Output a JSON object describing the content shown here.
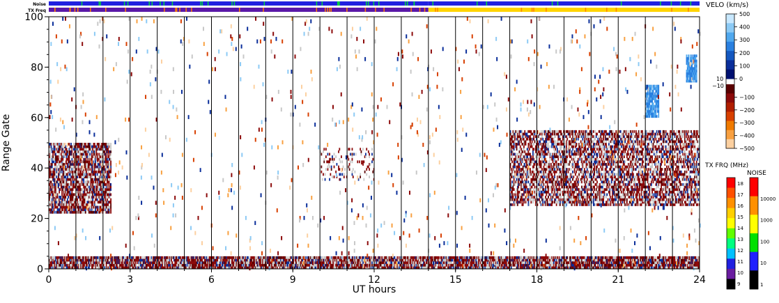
{
  "chart_data": {
    "type": "heatmap",
    "xlabel": "UT hours",
    "ylabel": "Range Gate",
    "xlim": [
      0,
      24
    ],
    "ylim": [
      0,
      100
    ],
    "x_ticks": [
      "0",
      "3",
      "6",
      "9",
      "12",
      "15",
      "18",
      "21",
      "24"
    ],
    "x_tick_values": [
      0,
      3,
      6,
      9,
      12,
      15,
      18,
      21,
      24
    ],
    "y_ticks": [
      "0",
      "20",
      "40",
      "60",
      "80",
      "100"
    ],
    "y_tick_values": [
      0,
      20,
      40,
      60,
      80,
      100
    ],
    "hour_marker_lines": [
      1,
      2,
      3,
      4,
      5,
      6,
      7,
      8,
      9,
      10,
      11,
      12,
      13,
      14,
      15,
      16,
      17,
      18,
      19,
      20,
      21,
      22,
      23,
      24
    ],
    "top_strips": [
      {
        "name": "Noise",
        "label": "Noise",
        "segments": [
          {
            "from": 0,
            "to": 14,
            "color": "#2020e0"
          },
          {
            "from": 14,
            "to": 24,
            "color": "#2020e0"
          }
        ],
        "tick_color": "#00d040"
      },
      {
        "name": "TX Freq",
        "label": "TX Freq",
        "segments": [
          {
            "from": 0,
            "to": 14,
            "color": "#5a18a8"
          },
          {
            "from": 14,
            "to": 24,
            "color": "#ffd400"
          }
        ],
        "tick_color": "#ff8000"
      }
    ],
    "velocity_colorbar": {
      "title": "VELO (km/s)",
      "ticks": [
        "500",
        "400",
        "300",
        "200",
        "100",
        "0",
        "−100",
        "−200",
        "−300",
        "−400",
        "−500"
      ],
      "tick_values": [
        500,
        400,
        300,
        200,
        100,
        0,
        -100,
        -200,
        -300,
        -400,
        -500
      ],
      "gap_labels": [
        "10",
        "−10"
      ],
      "colors": [
        "#c8e8ff",
        "#8ccaf5",
        "#50a8ee",
        "#2a80e0",
        "#1458c0",
        "#0a2e9a",
        "#001070",
        "#5a0000",
        "#8c0a0a",
        "#b01e00",
        "#d84000",
        "#f07a00",
        "#f8a040",
        "#fcd0a0"
      ]
    },
    "txfreq_colorbar": {
      "title": "TX FRQ (MHz)",
      "ticks": [
        "18",
        "17",
        "16",
        "15",
        "14",
        "13",
        "12",
        "11",
        "10",
        "9"
      ],
      "colors": [
        "#ff0000",
        "#ff5000",
        "#ff9000",
        "#ffd000",
        "#ffff00",
        "#60ff00",
        "#00ff80",
        "#00c0ff",
        "#2020e0",
        "#6a1ca0",
        "#000000"
      ]
    },
    "noise_colorbar": {
      "title": "NOISE",
      "ticks": [
        "10000",
        "1000",
        "100",
        "10",
        "1"
      ],
      "colors": [
        "#ff0000",
        "#ff9000",
        "#ffff00",
        "#00e000",
        "#2020ff",
        "#000000"
      ]
    },
    "scatter_bands": [
      {
        "name": "ground scatter near range",
        "t0": 0,
        "t1": 24,
        "g0": 0,
        "g1": 5,
        "density": 0.9
      },
      {
        "name": "morning band",
        "t0": 0,
        "t1": 2.3,
        "g0": 22,
        "g1": 50,
        "density": 0.75
      },
      {
        "name": "evening band",
        "t0": 17,
        "t1": 24,
        "g0": 25,
        "g1": 55,
        "density": 0.6
      },
      {
        "name": "mid-day band",
        "t0": 10,
        "t1": 12,
        "g0": 35,
        "g1": 48,
        "density": 0.15
      },
      {
        "name": "far range patch",
        "t0": 23.5,
        "t1": 23.9,
        "g0": 74,
        "g1": 85,
        "density": 0.9
      },
      {
        "name": "far range patch 2",
        "t0": 22,
        "t1": 22.5,
        "g0": 60,
        "g1": 73,
        "density": 0.8
      }
    ]
  }
}
